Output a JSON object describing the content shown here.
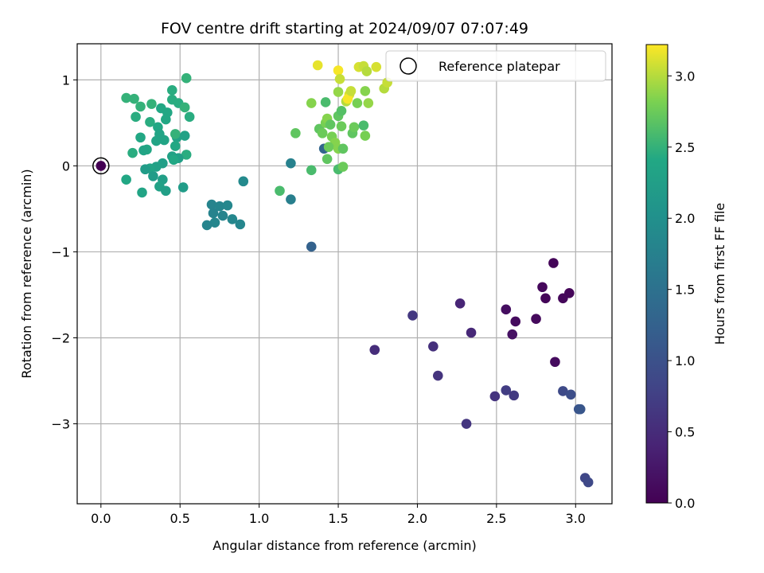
{
  "chart_data": {
    "type": "scatter",
    "title": "FOV centre drift starting at 2024/09/07 07:07:49",
    "xlabel": "Angular distance from reference (arcmin)",
    "ylabel": "Rotation from reference (arcmin)",
    "xlim": [
      -0.15,
      3.23
    ],
    "ylim": [
      -3.93,
      1.42
    ],
    "xticks": [
      0.0,
      0.5,
      1.0,
      1.5,
      2.0,
      2.5,
      3.0
    ],
    "xtick_labels": [
      "0.0",
      "0.5",
      "1.0",
      "1.5",
      "2.0",
      "2.5",
      "3.0"
    ],
    "yticks": [
      -3,
      -2,
      -1,
      0,
      1
    ],
    "ytick_labels": [
      "−3",
      "−2",
      "−1",
      "0",
      "1"
    ],
    "grid": true,
    "colormap": "viridis",
    "colorbar": {
      "label": "Hours from first FF file",
      "min": 0.0,
      "max": 3.22,
      "ticks": [
        0.0,
        0.5,
        1.0,
        1.5,
        2.0,
        2.5,
        3.0
      ],
      "tick_labels": [
        "0.0",
        "0.5",
        "1.0",
        "1.5",
        "2.0",
        "2.5",
        "3.0"
      ]
    },
    "legend": {
      "position": "top-right",
      "entries": [
        "Reference platepar"
      ]
    },
    "reference_point": {
      "x": 0.0,
      "y": 0.0,
      "hours": 0.0
    },
    "points": [
      {
        "x": 2.86,
        "y": -1.13,
        "h": 0.05
      },
      {
        "x": 2.79,
        "y": -1.41,
        "h": 0.08
      },
      {
        "x": 2.96,
        "y": -1.48,
        "h": 0.06
      },
      {
        "x": 2.92,
        "y": -1.54,
        "h": 0.07
      },
      {
        "x": 2.81,
        "y": -1.54,
        "h": 0.05
      },
      {
        "x": 2.56,
        "y": -1.67,
        "h": 0.15
      },
      {
        "x": 2.75,
        "y": -1.78,
        "h": 0.1
      },
      {
        "x": 2.62,
        "y": -1.81,
        "h": 0.12
      },
      {
        "x": 2.6,
        "y": -1.96,
        "h": 0.18
      },
      {
        "x": 2.87,
        "y": -2.28,
        "h": 0.12
      },
      {
        "x": 2.27,
        "y": -1.6,
        "h": 0.42
      },
      {
        "x": 2.34,
        "y": -1.94,
        "h": 0.45
      },
      {
        "x": 2.1,
        "y": -2.1,
        "h": 0.55
      },
      {
        "x": 1.97,
        "y": -1.74,
        "h": 0.65
      },
      {
        "x": 1.73,
        "y": -2.14,
        "h": 0.52
      },
      {
        "x": 2.13,
        "y": -2.44,
        "h": 0.6
      },
      {
        "x": 2.31,
        "y": -3.0,
        "h": 0.62
      },
      {
        "x": 2.49,
        "y": -2.68,
        "h": 0.6
      },
      {
        "x": 2.56,
        "y": -2.61,
        "h": 0.72
      },
      {
        "x": 2.61,
        "y": -2.67,
        "h": 0.68
      },
      {
        "x": 2.92,
        "y": -2.62,
        "h": 0.9
      },
      {
        "x": 2.97,
        "y": -2.66,
        "h": 0.95
      },
      {
        "x": 3.02,
        "y": -2.83,
        "h": 1.05
      },
      {
        "x": 3.03,
        "y": -2.83,
        "h": 1.08
      },
      {
        "x": 3.06,
        "y": -3.63,
        "h": 0.85
      },
      {
        "x": 3.08,
        "y": -3.68,
        "h": 0.88
      },
      {
        "x": 1.33,
        "y": -0.94,
        "h": 1.25
      },
      {
        "x": 1.41,
        "y": 0.2,
        "h": 1.3
      },
      {
        "x": 1.2,
        "y": 0.03,
        "h": 1.75
      },
      {
        "x": 1.2,
        "y": -0.39,
        "h": 1.72
      },
      {
        "x": 0.7,
        "y": -0.45,
        "h": 1.8
      },
      {
        "x": 0.75,
        "y": -0.47,
        "h": 1.82
      },
      {
        "x": 0.8,
        "y": -0.46,
        "h": 1.85
      },
      {
        "x": 0.71,
        "y": -0.55,
        "h": 1.78
      },
      {
        "x": 0.77,
        "y": -0.58,
        "h": 1.8
      },
      {
        "x": 0.83,
        "y": -0.62,
        "h": 1.85
      },
      {
        "x": 0.72,
        "y": -0.66,
        "h": 1.83
      },
      {
        "x": 0.67,
        "y": -0.69,
        "h": 1.8
      },
      {
        "x": 0.88,
        "y": -0.68,
        "h": 1.83
      },
      {
        "x": 0.9,
        "y": -0.18,
        "h": 1.9
      },
      {
        "x": 0.16,
        "y": 0.79,
        "h": 2.5
      },
      {
        "x": 0.21,
        "y": 0.78,
        "h": 2.5
      },
      {
        "x": 0.25,
        "y": 0.69,
        "h": 2.5
      },
      {
        "x": 0.32,
        "y": 0.72,
        "h": 2.5
      },
      {
        "x": 0.22,
        "y": 0.57,
        "h": 2.45
      },
      {
        "x": 0.38,
        "y": 0.67,
        "h": 2.4
      },
      {
        "x": 0.42,
        "y": 0.62,
        "h": 2.4
      },
      {
        "x": 0.45,
        "y": 0.77,
        "h": 2.45
      },
      {
        "x": 0.45,
        "y": 0.88,
        "h": 2.45
      },
      {
        "x": 0.49,
        "y": 0.73,
        "h": 2.45
      },
      {
        "x": 0.53,
        "y": 0.68,
        "h": 2.5
      },
      {
        "x": 0.54,
        "y": 1.02,
        "h": 2.5
      },
      {
        "x": 0.56,
        "y": 0.57,
        "h": 2.45
      },
      {
        "x": 0.31,
        "y": 0.51,
        "h": 2.45
      },
      {
        "x": 0.41,
        "y": 0.54,
        "h": 2.4
      },
      {
        "x": 0.36,
        "y": 0.45,
        "h": 2.4
      },
      {
        "x": 0.37,
        "y": 0.37,
        "h": 2.35
      },
      {
        "x": 0.4,
        "y": 0.3,
        "h": 2.35
      },
      {
        "x": 0.35,
        "y": 0.29,
        "h": 2.35
      },
      {
        "x": 0.48,
        "y": 0.33,
        "h": 2.3
      },
      {
        "x": 0.47,
        "y": 0.37,
        "h": 2.5
      },
      {
        "x": 0.53,
        "y": 0.35,
        "h": 2.3
      },
      {
        "x": 0.47,
        "y": 0.23,
        "h": 2.4
      },
      {
        "x": 0.25,
        "y": 0.33,
        "h": 2.4
      },
      {
        "x": 0.29,
        "y": 0.19,
        "h": 2.4
      },
      {
        "x": 0.27,
        "y": 0.18,
        "h": 2.35
      },
      {
        "x": 0.2,
        "y": 0.15,
        "h": 2.45
      },
      {
        "x": 0.54,
        "y": 0.13,
        "h": 2.45
      },
      {
        "x": 0.45,
        "y": 0.11,
        "h": 2.3
      },
      {
        "x": 0.49,
        "y": 0.09,
        "h": 2.25
      },
      {
        "x": 0.46,
        "y": 0.07,
        "h": 2.4
      },
      {
        "x": 0.39,
        "y": 0.03,
        "h": 2.25
      },
      {
        "x": 0.35,
        "y": -0.01,
        "h": 2.3
      },
      {
        "x": 0.31,
        "y": -0.03,
        "h": 2.35
      },
      {
        "x": 0.28,
        "y": -0.04,
        "h": 2.2
      },
      {
        "x": 0.33,
        "y": -0.12,
        "h": 2.2
      },
      {
        "x": 0.39,
        "y": -0.16,
        "h": 2.25
      },
      {
        "x": 0.16,
        "y": -0.16,
        "h": 2.4
      },
      {
        "x": 0.37,
        "y": -0.24,
        "h": 2.3
      },
      {
        "x": 0.41,
        "y": -0.29,
        "h": 2.25
      },
      {
        "x": 0.26,
        "y": -0.31,
        "h": 2.35
      },
      {
        "x": 0.52,
        "y": -0.25,
        "h": 2.2
      },
      {
        "x": 1.13,
        "y": -0.29,
        "h": 2.6
      },
      {
        "x": 1.23,
        "y": 0.38,
        "h": 2.7
      },
      {
        "x": 1.33,
        "y": -0.05,
        "h": 2.6
      },
      {
        "x": 1.33,
        "y": 0.73,
        "h": 2.85
      },
      {
        "x": 1.42,
        "y": 0.74,
        "h": 2.6
      },
      {
        "x": 1.38,
        "y": 0.43,
        "h": 2.7
      },
      {
        "x": 1.4,
        "y": 0.38,
        "h": 2.75
      },
      {
        "x": 1.42,
        "y": 0.5,
        "h": 2.8
      },
      {
        "x": 1.43,
        "y": 0.55,
        "h": 2.85
      },
      {
        "x": 1.45,
        "y": 0.48,
        "h": 2.7
      },
      {
        "x": 1.46,
        "y": 0.34,
        "h": 2.8
      },
      {
        "x": 1.48,
        "y": 0.27,
        "h": 2.85
      },
      {
        "x": 1.44,
        "y": 0.22,
        "h": 2.75
      },
      {
        "x": 1.43,
        "y": 0.08,
        "h": 2.7
      },
      {
        "x": 1.5,
        "y": -0.04,
        "h": 2.6
      },
      {
        "x": 1.53,
        "y": -0.01,
        "h": 2.75
      },
      {
        "x": 1.5,
        "y": 0.2,
        "h": 2.85
      },
      {
        "x": 1.53,
        "y": 0.2,
        "h": 2.7
      },
      {
        "x": 1.52,
        "y": 0.46,
        "h": 2.75
      },
      {
        "x": 1.5,
        "y": 0.58,
        "h": 2.7
      },
      {
        "x": 1.52,
        "y": 0.64,
        "h": 2.65
      },
      {
        "x": 1.5,
        "y": 0.86,
        "h": 2.9
      },
      {
        "x": 1.55,
        "y": 0.75,
        "h": 3.0
      },
      {
        "x": 1.57,
        "y": 0.83,
        "h": 3.1
      },
      {
        "x": 1.56,
        "y": 0.78,
        "h": 3.2
      },
      {
        "x": 1.58,
        "y": 0.87,
        "h": 3.05
      },
      {
        "x": 1.59,
        "y": 0.38,
        "h": 2.7
      },
      {
        "x": 1.6,
        "y": 0.45,
        "h": 2.75
      },
      {
        "x": 1.62,
        "y": 0.73,
        "h": 2.8
      },
      {
        "x": 1.66,
        "y": 0.47,
        "h": 2.6
      },
      {
        "x": 1.67,
        "y": 0.35,
        "h": 2.8
      },
      {
        "x": 1.67,
        "y": 0.87,
        "h": 2.85
      },
      {
        "x": 1.69,
        "y": 0.73,
        "h": 2.9
      },
      {
        "x": 1.63,
        "y": 1.15,
        "h": 3.1
      },
      {
        "x": 1.66,
        "y": 1.16,
        "h": 3.05
      },
      {
        "x": 1.68,
        "y": 1.1,
        "h": 3.0
      },
      {
        "x": 1.5,
        "y": 1.11,
        "h": 3.2
      },
      {
        "x": 1.51,
        "y": 1.01,
        "h": 3.05
      },
      {
        "x": 1.37,
        "y": 1.17,
        "h": 3.15
      },
      {
        "x": 1.74,
        "y": 1.15,
        "h": 3.1
      },
      {
        "x": 1.79,
        "y": 0.9,
        "h": 3.0
      },
      {
        "x": 1.81,
        "y": 0.97,
        "h": 3.05
      }
    ]
  }
}
